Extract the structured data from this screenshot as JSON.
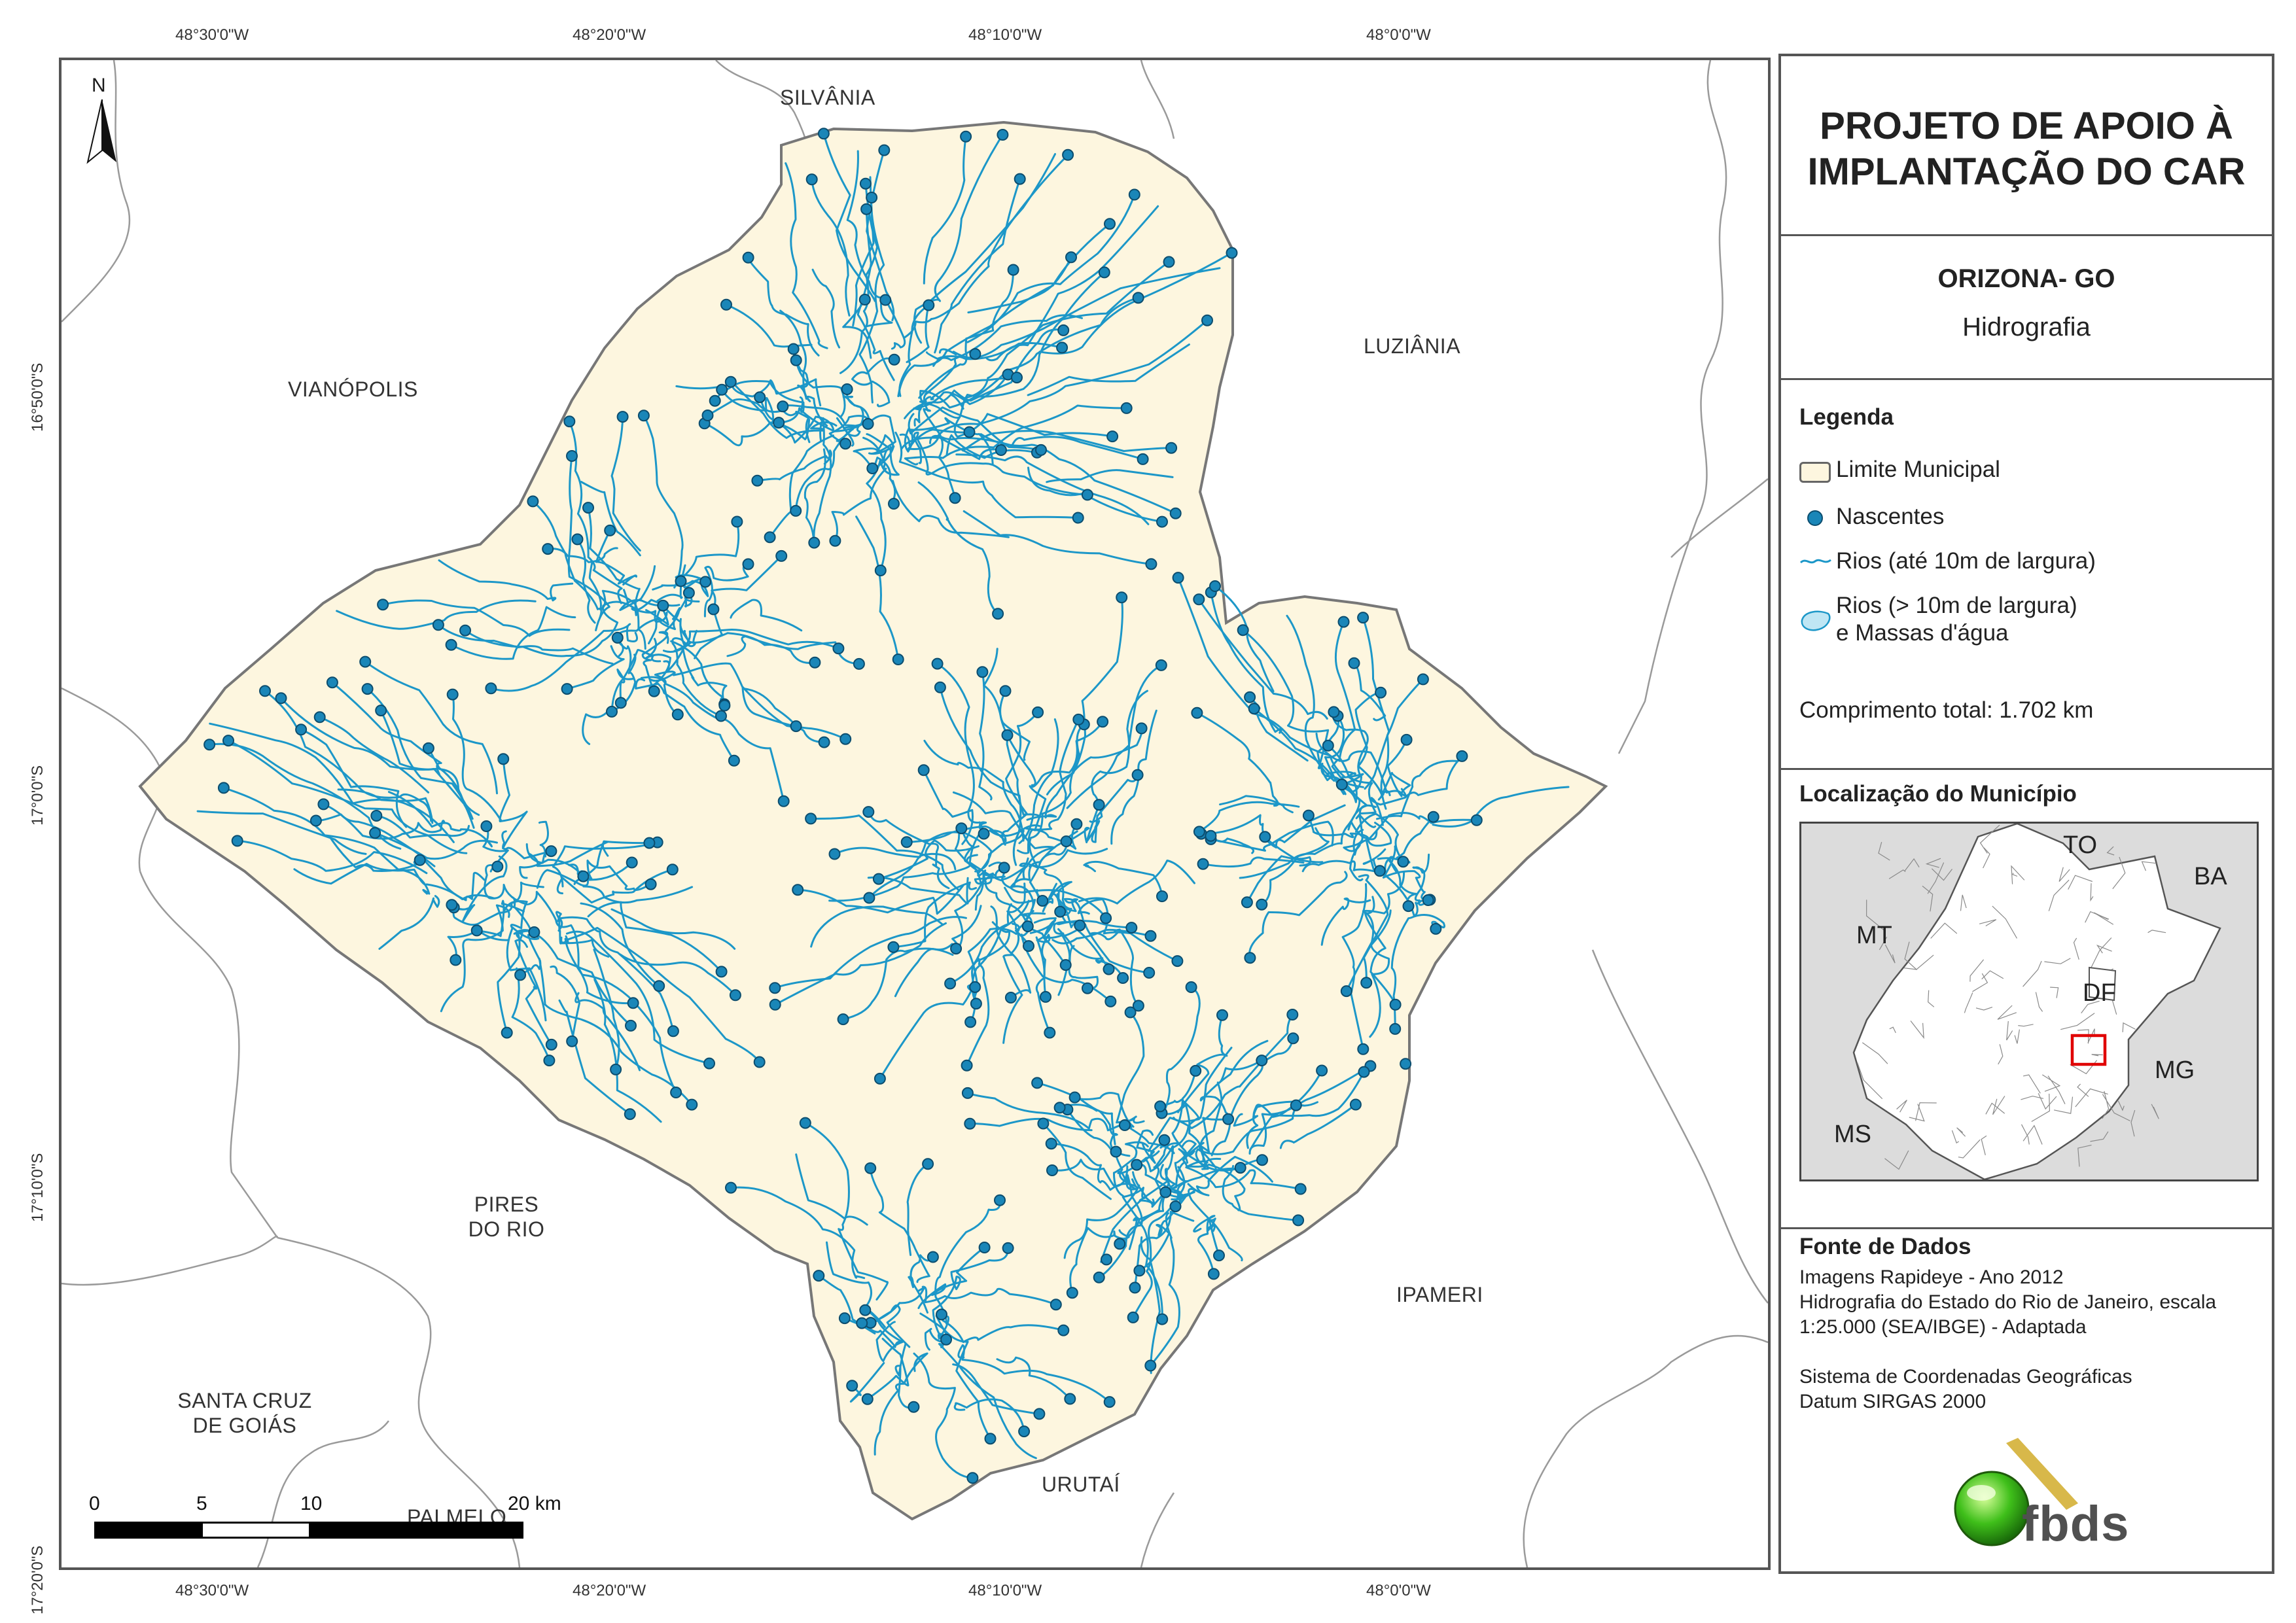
{
  "coordinates": {
    "top": [
      "48°30'0\"W",
      "48°20'0\"W",
      "48°10'0\"W",
      "48°0'0\"W"
    ],
    "bottom": [
      "48°30'0\"W",
      "48°20'0\"W",
      "48°10'0\"W",
      "48°0'0\"W"
    ],
    "left": [
      "16°50'0\"S",
      "17°0'0\"S",
      "17°10'0\"S",
      "17°20'0\"S"
    ]
  },
  "map": {
    "neighbors": {
      "silvania": "SILVÂNIA",
      "luziania": "LUZIÂNIA",
      "vianopolis": "VIANÓPOLIS",
      "pires_do_rio_1": "PIRES",
      "pires_do_rio_2": "DO RIO",
      "ipameri": "IPAMERI",
      "santa_cruz_1": "SANTA CRUZ",
      "santa_cruz_2": "DE GOIÁS",
      "urutai": "URUTAÍ",
      "palmelo": "PALMELO"
    },
    "north_label": "N",
    "scale": {
      "ticks": [
        "0",
        "5",
        "10",
        "20 km"
      ]
    },
    "colors": {
      "municipality_fill": "#fdf6df",
      "boundary": "#777777",
      "river": "#1c97c8",
      "spring": "#1a86b8"
    }
  },
  "panel": {
    "title_line1": "PROJETO DE APOIO À",
    "title_line2": "IMPLANTAÇÃO DO CAR",
    "municipality": "ORIZONA- GO",
    "theme": "Hidrografia",
    "legend_title": "Legenda",
    "legend": {
      "limite": "Limite Municipal",
      "nascentes": "Nascentes",
      "rios_small": "Rios (até 10m de largura)",
      "rios_large_1": "Rios (> 10m de largura)",
      "rios_large_2": "e Massas d'água"
    },
    "total_length": "Comprimento total: 1.702 km",
    "location_title": "Localização do Município",
    "inset_labels": {
      "to": "TO",
      "ba": "BA",
      "mt": "MT",
      "df": "DF",
      "mg": "MG",
      "ms": "MS"
    },
    "sources_title": "Fonte de Dados",
    "sources": {
      "line1": "Imagens Rapideye - Ano 2012",
      "line2": "Hidrografia do Estado do Rio de Janeiro, escala",
      "line3": "1:25.000 (SEA/IBGE) - Adaptada",
      "line4": "Sistema de Coordenadas Geográficas",
      "line5": "Datum SIRGAS 2000"
    },
    "logo_text": "fbds"
  }
}
